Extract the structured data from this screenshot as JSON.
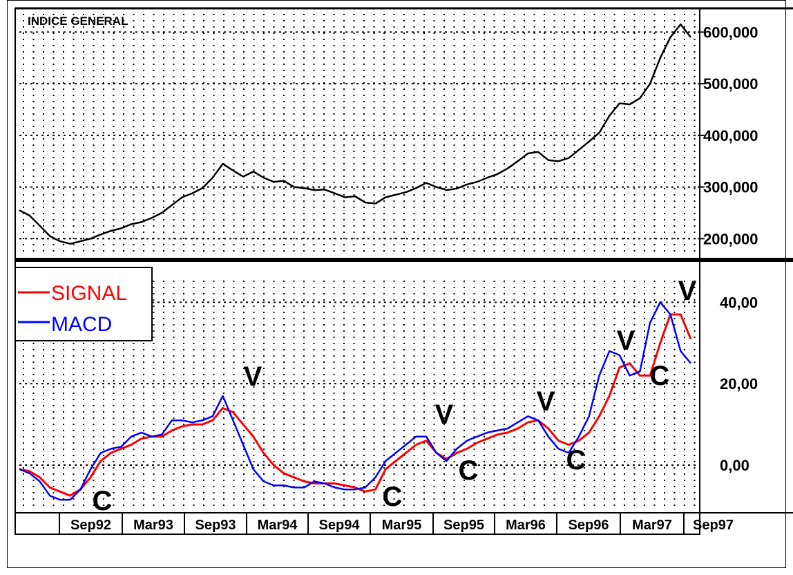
{
  "colors": {
    "signal": "#ff0000",
    "macd": "#0000ff",
    "axis": "#000000",
    "grid": "#000000",
    "background": "#ffffff"
  },
  "chart_data": [
    {
      "type": "line",
      "title": "INDICE GENERAL",
      "ylim": [
        175000,
        630000
      ],
      "yticks": [
        200000,
        300000,
        400000,
        500000,
        600000
      ],
      "ytick_labels": [
        "200,000",
        "300,000",
        "400,000",
        "500,000",
        "600,000"
      ],
      "grid": true,
      "x": [
        "Mar92",
        "Apr92",
        "May92",
        "Jun92",
        "Jul92",
        "Aug92",
        "Sep92",
        "Oct92",
        "Nov92",
        "Dec92",
        "Jan93",
        "Feb93",
        "Mar93",
        "Apr93",
        "May93",
        "Jun93",
        "Jul93",
        "Aug93",
        "Sep93",
        "Oct93",
        "Nov93",
        "Dec93",
        "Jan94",
        "Feb94",
        "Mar94",
        "Apr94",
        "May94",
        "Jun94",
        "Jul94",
        "Aug94",
        "Sep94",
        "Oct94",
        "Nov94",
        "Dec94",
        "Jan95",
        "Feb95",
        "Mar95",
        "Apr95",
        "May95",
        "Jun95",
        "Jul95",
        "Aug95",
        "Sep95",
        "Oct95",
        "Nov95",
        "Dec95",
        "Jan96",
        "Feb96",
        "Mar96",
        "Apr96",
        "May96",
        "Jun96",
        "Jul96",
        "Aug96",
        "Sep96",
        "Oct96",
        "Nov96",
        "Dec96",
        "Jan97",
        "Feb97",
        "Mar97",
        "Apr97",
        "May97",
        "Jun97",
        "Jul97",
        "Aug97",
        "Sep97"
      ],
      "series": [
        {
          "values": [
            255000,
            245000,
            225000,
            205000,
            195000,
            190000,
            195000,
            200000,
            208000,
            215000,
            220000,
            228000,
            232000,
            240000,
            250000,
            265000,
            280000,
            288000,
            298000,
            318000,
            345000,
            332000,
            320000,
            330000,
            318000,
            310000,
            312000,
            300000,
            298000,
            294000,
            295000,
            288000,
            280000,
            282000,
            270000,
            268000,
            280000,
            285000,
            290000,
            298000,
            308000,
            300000,
            294000,
            297000,
            305000,
            310000,
            318000,
            325000,
            336000,
            350000,
            365000,
            368000,
            352000,
            350000,
            356000,
            372000,
            388000,
            405000,
            438000,
            462000,
            460000,
            472000,
            500000,
            550000,
            590000,
            615000,
            590000
          ]
        }
      ]
    },
    {
      "type": "line",
      "ylim": [
        -9,
        46
      ],
      "yticks": [
        0,
        20,
        40
      ],
      "ytick_labels": [
        "0,00",
        "20,00",
        "40,00"
      ],
      "grid": true,
      "x": [
        "Mar92",
        "Apr92",
        "May92",
        "Jun92",
        "Jul92",
        "Aug92",
        "Sep92",
        "Oct92",
        "Nov92",
        "Dec92",
        "Jan93",
        "Feb93",
        "Mar93",
        "Apr93",
        "May93",
        "Jun93",
        "Jul93",
        "Aug93",
        "Sep93",
        "Oct93",
        "Nov93",
        "Dec93",
        "Jan94",
        "Feb94",
        "Mar94",
        "Apr94",
        "May94",
        "Jun94",
        "Jul94",
        "Aug94",
        "Sep94",
        "Oct94",
        "Nov94",
        "Dec94",
        "Jan95",
        "Feb95",
        "Mar95",
        "Apr95",
        "May95",
        "Jun95",
        "Jul95",
        "Aug95",
        "Sep95",
        "Oct95",
        "Nov95",
        "Dec95",
        "Jan96",
        "Feb96",
        "Mar96",
        "Apr96",
        "May96",
        "Jun96",
        "Jul96",
        "Aug96",
        "Sep96",
        "Oct96",
        "Nov96",
        "Dec96",
        "Jan97",
        "Feb97",
        "Mar97",
        "Apr97",
        "May97",
        "Jun97",
        "Jul97",
        "Aug97",
        "Sep97"
      ],
      "series": [
        {
          "name": "SIGNAL",
          "values": [
            -1,
            -1.5,
            -3,
            -5.5,
            -6.5,
            -7.5,
            -6,
            -3,
            1,
            3,
            4,
            5,
            6.5,
            7,
            7,
            8.5,
            9.5,
            10,
            10,
            11,
            14,
            13,
            10,
            7,
            3,
            0,
            -2,
            -3,
            -4,
            -4.5,
            -4.5,
            -4.5,
            -5,
            -5.5,
            -6.5,
            -6,
            -1,
            1,
            3,
            5,
            6,
            3,
            1.5,
            3,
            4,
            5.5,
            6.5,
            7.5,
            8,
            9,
            10.5,
            11,
            9,
            6,
            5,
            6,
            8,
            12,
            17,
            24,
            25,
            22,
            22,
            30,
            37,
            37,
            31
          ]
        },
        {
          "name": "MACD",
          "values": [
            -1,
            -2,
            -4,
            -7.5,
            -8.5,
            -8.5,
            -6,
            -1,
            3,
            4,
            4.5,
            7,
            8,
            7,
            7.5,
            11,
            11,
            10.5,
            11,
            12,
            17,
            11,
            5,
            -1,
            -4,
            -5,
            -5,
            -5.5,
            -5.5,
            -4,
            -4.5,
            -5.5,
            -6,
            -6,
            -5.5,
            -3,
            1,
            3,
            5,
            7,
            7,
            3,
            1,
            4,
            6,
            7,
            8,
            8.5,
            9,
            10.5,
            12,
            11,
            7,
            4,
            3,
            7,
            12,
            22,
            28,
            27,
            22,
            23,
            35,
            40,
            37,
            28,
            25
          ]
        }
      ]
    }
  ],
  "x_axis_labels": [
    "Sep92",
    "Mar93",
    "Sep93",
    "Mar94",
    "Sep94",
    "Mar95",
    "Sep95",
    "Mar96",
    "Sep96",
    "Mar97",
    "Sep97"
  ],
  "legend": {
    "signal_label": "SIGNAL",
    "macd_label": "MACD"
  },
  "annotations": [
    "C",
    "V",
    "C",
    "V",
    "C",
    "V",
    "C",
    "V",
    "C",
    "V"
  ]
}
